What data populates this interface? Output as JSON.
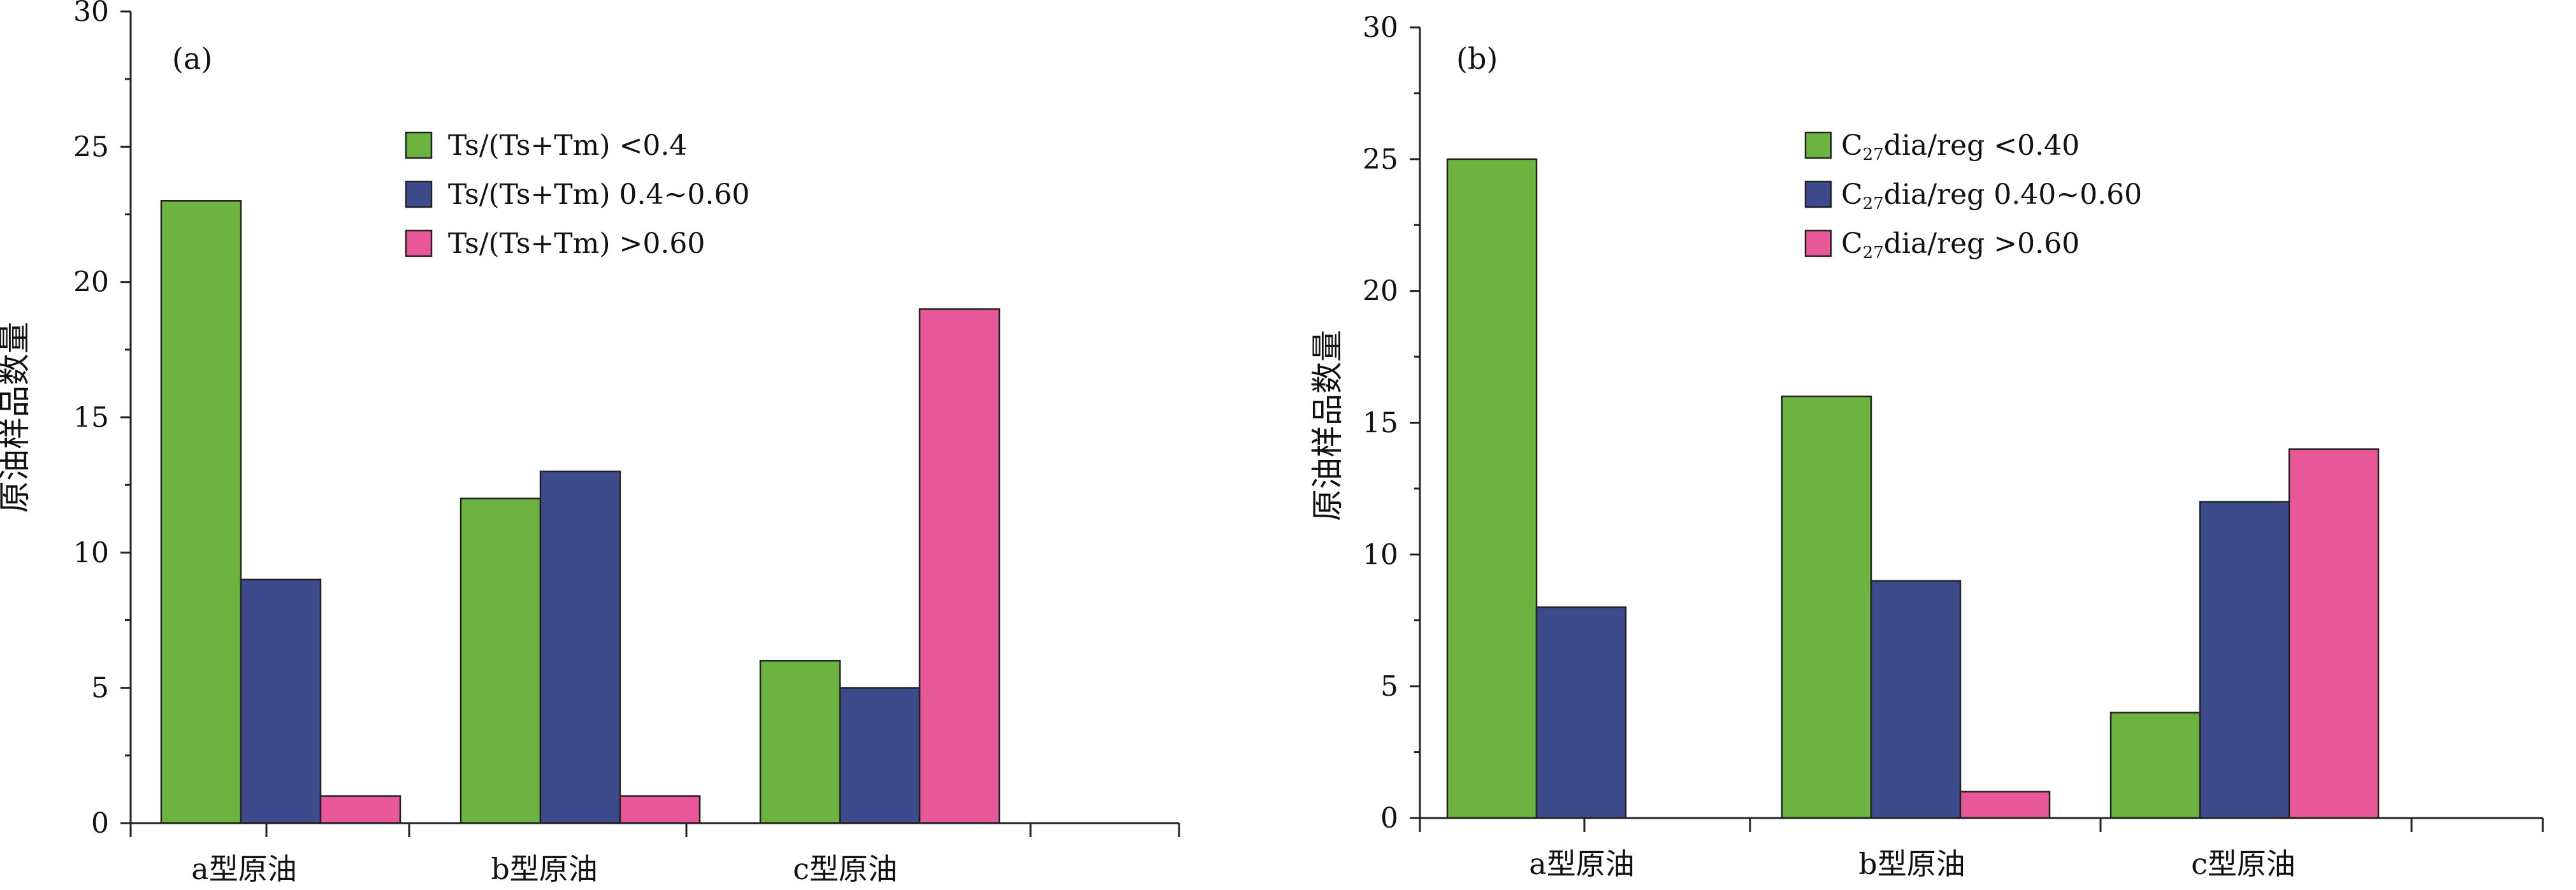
{
  "chart_data": [
    {
      "type": "bar",
      "panel_label": "(a)",
      "ylabel": "原油样品数量",
      "xlabel": "",
      "ylim": [
        0,
        30
      ],
      "yticks": [
        0,
        5,
        10,
        15,
        20,
        25,
        30
      ],
      "categories": [
        "a型原油",
        "b型原油",
        "c型原油"
      ],
      "series": [
        {
          "name": "Ts/(Ts+Tm) <0.4",
          "color": "#6db33f",
          "values": [
            23,
            12,
            6
          ]
        },
        {
          "name": "Ts/(Ts+Tm) 0.4~0.60",
          "color": "#3d4a8c",
          "values": [
            9,
            13,
            5
          ]
        },
        {
          "name": "Ts/(Ts+Tm) >0.60",
          "color": "#e85797",
          "values": [
            1,
            1,
            19
          ]
        }
      ],
      "legend_position": "top-center"
    },
    {
      "type": "bar",
      "panel_label": "(b)",
      "ylabel": "原油样品数量",
      "xlabel": "",
      "ylim": [
        0,
        30
      ],
      "yticks": [
        0,
        5,
        10,
        15,
        20,
        25,
        30
      ],
      "categories": [
        "a型原油",
        "b型原油",
        "c型原油"
      ],
      "series": [
        {
          "name": "C27dia/reg <0.40",
          "name_prefix": "C",
          "name_sub": "27",
          "name_suffix": "dia/reg <0.40",
          "color": "#6db33f",
          "values": [
            25,
            16,
            4
          ]
        },
        {
          "name": "C27dia/reg 0.40~0.60",
          "name_prefix": "C",
          "name_sub": "27",
          "name_suffix": "dia/reg 0.40~0.60",
          "color": "#3d4a8c",
          "values": [
            8,
            9,
            12
          ]
        },
        {
          "name": "C27dia/reg >0.60",
          "name_prefix": "C",
          "name_sub": "27",
          "name_suffix": "dia/reg >0.60",
          "color": "#e85797",
          "values": [
            0,
            1,
            14
          ]
        }
      ],
      "legend_position": "top-center"
    }
  ]
}
